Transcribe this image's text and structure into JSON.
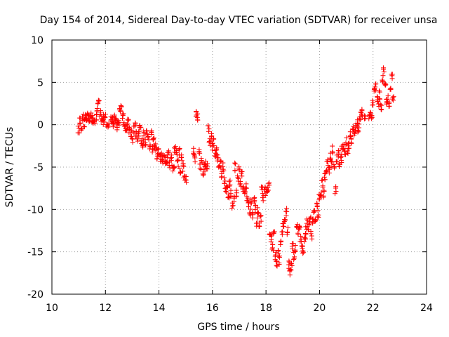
{
  "chart_data": {
    "type": "scatter",
    "title": "Day 154 of 2014, Sidereal Day-to-day VTEC variation (SDTVAR) for receiver unsa",
    "xlabel": "GPS time / hours",
    "ylabel": "SDTVAR / TECUs",
    "xlim": [
      10,
      24
    ],
    "ylim": [
      -20,
      10
    ],
    "xticks": [
      10,
      12,
      14,
      16,
      18,
      20,
      22,
      24
    ],
    "yticks": [
      -20,
      -15,
      -10,
      -5,
      0,
      5,
      10
    ],
    "xtick_labels": [
      "10",
      "12",
      "14",
      "16",
      "18",
      "20",
      "22",
      "24"
    ],
    "ytick_labels": [
      "-20",
      "-15",
      "-10",
      "-5",
      "0",
      "5",
      "10"
    ],
    "grid": true,
    "marker": "+",
    "color": "#ff0000",
    "series": [
      {
        "name": "unsa",
        "points": [
          [
            11.0,
            -0.5
          ],
          [
            11.05,
            0.5
          ],
          [
            11.1,
            -0.2
          ],
          [
            11.15,
            0.8
          ],
          [
            11.2,
            0.2
          ],
          [
            11.25,
            1.0
          ],
          [
            11.3,
            0.5
          ],
          [
            11.35,
            1.2
          ],
          [
            11.4,
            0.8
          ],
          [
            11.45,
            1.3
          ],
          [
            11.5,
            0.6
          ],
          [
            11.55,
            0.3
          ],
          [
            11.6,
            0.6
          ],
          [
            11.65,
            1.0
          ],
          [
            11.7,
            2.0
          ],
          [
            11.75,
            2.6
          ],
          [
            11.8,
            1.5
          ],
          [
            11.85,
            0.6
          ],
          [
            11.9,
            0.3
          ],
          [
            11.95,
            0.8
          ],
          [
            12.0,
            1.2
          ],
          [
            12.05,
            0.2
          ],
          [
            12.1,
            -0.3
          ],
          [
            12.2,
            0.8
          ],
          [
            12.25,
            0.5
          ],
          [
            12.3,
            0.0
          ],
          [
            12.35,
            0.9
          ],
          [
            12.4,
            0.3
          ],
          [
            12.45,
            -0.1
          ],
          [
            12.5,
            0.3
          ],
          [
            12.55,
            2.0
          ],
          [
            12.6,
            1.8
          ],
          [
            12.65,
            1.2
          ],
          [
            12.7,
            0.3
          ],
          [
            12.75,
            -0.4
          ],
          [
            12.8,
            -0.2
          ],
          [
            12.85,
            0.4
          ],
          [
            12.9,
            -0.5
          ],
          [
            12.95,
            -1.2
          ],
          [
            13.0,
            -1.6
          ],
          [
            13.05,
            -0.6
          ],
          [
            13.1,
            -0.1
          ],
          [
            13.15,
            -1.0
          ],
          [
            13.2,
            -1.5
          ],
          [
            13.25,
            -0.9
          ],
          [
            13.3,
            -0.4
          ],
          [
            13.35,
            -2.0
          ],
          [
            13.4,
            -2.3
          ],
          [
            13.45,
            -1.0
          ],
          [
            13.5,
            -2.2
          ],
          [
            13.55,
            -0.8
          ],
          [
            13.6,
            -1.3
          ],
          [
            13.65,
            -2.6
          ],
          [
            13.7,
            -1.0
          ],
          [
            13.75,
            -2.8
          ],
          [
            13.8,
            -1.5
          ],
          [
            13.85,
            -2.4
          ],
          [
            13.9,
            -3.0
          ],
          [
            13.95,
            -3.6
          ],
          [
            14.0,
            -3.3
          ],
          [
            14.05,
            -4.0
          ],
          [
            14.1,
            -3.8
          ],
          [
            14.15,
            -4.5
          ],
          [
            14.2,
            -3.5
          ],
          [
            14.25,
            -4.6
          ],
          [
            14.3,
            -4.2
          ],
          [
            14.35,
            -3.5
          ],
          [
            14.4,
            -4.8
          ],
          [
            14.45,
            -4.0
          ],
          [
            14.5,
            -5.2
          ],
          [
            14.55,
            -4.8
          ],
          [
            14.6,
            -3.0
          ],
          [
            14.65,
            -3.4
          ],
          [
            14.7,
            -4.5
          ],
          [
            14.75,
            -3.2
          ],
          [
            14.8,
            -5.5
          ],
          [
            14.85,
            -4.0
          ],
          [
            14.9,
            -5.0
          ],
          [
            14.95,
            -6.2
          ],
          [
            15.0,
            -6.5
          ],
          [
            15.3,
            -3.2
          ],
          [
            15.35,
            -4.0
          ],
          [
            15.4,
            1.5
          ],
          [
            15.45,
            1.0
          ],
          [
            15.5,
            -3.0
          ],
          [
            15.55,
            -5.0
          ],
          [
            15.6,
            -4.2
          ],
          [
            15.65,
            -5.5
          ],
          [
            15.7,
            -5.0
          ],
          [
            15.75,
            -4.6
          ],
          [
            15.8,
            -4.8
          ],
          [
            15.85,
            -0.5
          ],
          [
            15.9,
            -2.0
          ],
          [
            15.95,
            -1.5
          ],
          [
            16.0,
            -2.5
          ],
          [
            16.05,
            -2.0
          ],
          [
            16.1,
            -3.5
          ],
          [
            16.15,
            -3.0
          ],
          [
            16.2,
            -4.0
          ],
          [
            16.25,
            -5.0
          ],
          [
            16.3,
            -4.6
          ],
          [
            16.35,
            -6.0
          ],
          [
            16.4,
            -5.0
          ],
          [
            16.45,
            -6.5
          ],
          [
            16.5,
            -7.5
          ],
          [
            16.55,
            -7.2
          ],
          [
            16.6,
            -8.5
          ],
          [
            16.65,
            -7.0
          ],
          [
            16.7,
            -8.2
          ],
          [
            16.75,
            -9.5
          ],
          [
            16.8,
            -8.8
          ],
          [
            16.85,
            -5.0
          ],
          [
            16.9,
            -8.0
          ],
          [
            16.95,
            -6.5
          ],
          [
            17.0,
            -5.2
          ],
          [
            17.05,
            -7.0
          ],
          [
            17.1,
            -6.0
          ],
          [
            17.15,
            -7.5
          ],
          [
            17.2,
            -8.0
          ],
          [
            17.25,
            -7.2
          ],
          [
            17.3,
            -8.5
          ],
          [
            17.35,
            -9.5
          ],
          [
            17.4,
            -10.2
          ],
          [
            17.45,
            -8.8
          ],
          [
            17.5,
            -10.5
          ],
          [
            17.55,
            -9.0
          ],
          [
            17.6,
            -10.0
          ],
          [
            17.65,
            -11.5
          ],
          [
            17.7,
            -10.2
          ],
          [
            17.75,
            -12.0
          ],
          [
            17.8,
            -11.2
          ],
          [
            17.85,
            -7.8
          ],
          [
            17.9,
            -8.5
          ],
          [
            17.95,
            -7.8
          ],
          [
            18.0,
            -8.0
          ],
          [
            18.05,
            -7.5
          ],
          [
            18.1,
            -7.3
          ],
          [
            18.15,
            -12.5
          ],
          [
            18.2,
            -13.5
          ],
          [
            18.25,
            -14.5
          ],
          [
            18.3,
            -13.0
          ],
          [
            18.35,
            -15.5
          ],
          [
            18.4,
            -16.5
          ],
          [
            18.45,
            -15.2
          ],
          [
            18.5,
            -16.0
          ],
          [
            18.55,
            -14.0
          ],
          [
            18.6,
            -13.0
          ],
          [
            18.65,
            -12.0
          ],
          [
            18.7,
            -11.0
          ],
          [
            18.75,
            -10.3
          ],
          [
            18.8,
            -12.5
          ],
          [
            18.85,
            -16.5
          ],
          [
            18.9,
            -17.5
          ],
          [
            18.95,
            -16.8
          ],
          [
            19.0,
            -14.5
          ],
          [
            19.05,
            -15.5
          ],
          [
            19.1,
            -14.5
          ],
          [
            19.15,
            -12.0
          ],
          [
            19.2,
            -12.5
          ],
          [
            19.25,
            -12.0
          ],
          [
            19.3,
            -13.5
          ],
          [
            19.35,
            -14.5
          ],
          [
            19.4,
            -15.0
          ],
          [
            19.45,
            -13.8
          ],
          [
            19.5,
            -12.5
          ],
          [
            19.55,
            -11.5
          ],
          [
            19.6,
            -12.0
          ],
          [
            19.65,
            -11.0
          ],
          [
            19.7,
            -13.0
          ],
          [
            19.75,
            -11.5
          ],
          [
            19.8,
            -10.0
          ],
          [
            19.85,
            -11.5
          ],
          [
            19.9,
            -9.5
          ],
          [
            19.95,
            -10.5
          ],
          [
            20.0,
            -8.5
          ],
          [
            20.05,
            -8.0
          ],
          [
            20.1,
            -7.0
          ],
          [
            20.15,
            -8.2
          ],
          [
            20.2,
            -6.0
          ],
          [
            20.25,
            -5.5
          ],
          [
            20.3,
            -4.5
          ],
          [
            20.35,
            -5.2
          ],
          [
            20.4,
            -3.8
          ],
          [
            20.45,
            -4.5
          ],
          [
            20.5,
            -3.0
          ],
          [
            20.55,
            -5.0
          ],
          [
            20.6,
            -7.8
          ],
          [
            20.65,
            -4.0
          ],
          [
            20.7,
            -3.5
          ],
          [
            20.75,
            -5.0
          ],
          [
            20.8,
            -4.2
          ],
          [
            20.85,
            -3.0
          ],
          [
            20.9,
            -2.5
          ],
          [
            20.95,
            -3.5
          ],
          [
            21.0,
            -2.0
          ],
          [
            21.05,
            -3.2
          ],
          [
            21.1,
            -2.5
          ],
          [
            21.15,
            -1.2
          ],
          [
            21.2,
            -1.8
          ],
          [
            21.25,
            -0.5
          ],
          [
            21.3,
            -1.0
          ],
          [
            21.35,
            -0.2
          ],
          [
            21.4,
            0.2
          ],
          [
            21.45,
            -0.5
          ],
          [
            21.5,
            0.5
          ],
          [
            21.55,
            1.0
          ],
          [
            21.6,
            1.5
          ],
          [
            21.7,
            1.0
          ],
          [
            21.85,
            1.0
          ],
          [
            21.9,
            1.5
          ],
          [
            21.95,
            1.0
          ],
          [
            22.0,
            2.5
          ],
          [
            22.05,
            4.0
          ],
          [
            22.1,
            4.5
          ],
          [
            22.15,
            3.0
          ],
          [
            22.2,
            2.5
          ],
          [
            22.25,
            3.5
          ],
          [
            22.3,
            2.0
          ],
          [
            22.35,
            5.5
          ],
          [
            22.4,
            6.5
          ],
          [
            22.45,
            5.0
          ],
          [
            22.5,
            2.5
          ],
          [
            22.55,
            3.0
          ],
          [
            22.6,
            2.2
          ],
          [
            22.65,
            4.0
          ],
          [
            22.7,
            5.5
          ],
          [
            22.75,
            3.2
          ]
        ]
      }
    ]
  }
}
